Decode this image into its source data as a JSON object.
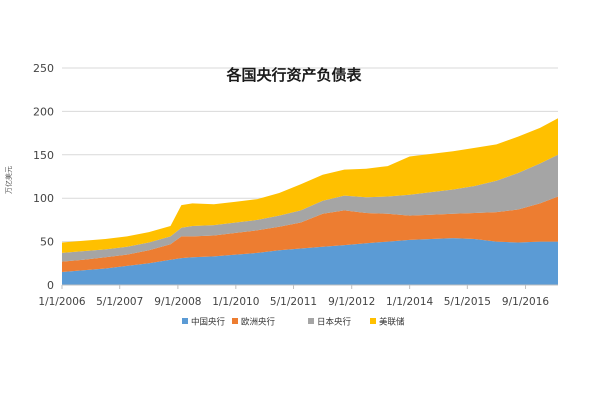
{
  "chart_data": {
    "type": "area",
    "stacked": true,
    "title": "各国央行资产负债表",
    "ylabel": "万亿美元",
    "ylim": [
      0,
      250
    ],
    "yticks": [
      0,
      50,
      100,
      150,
      200,
      250
    ],
    "xlim": [
      "2006-01-01",
      "2017-06-01"
    ],
    "xticks": [
      "1/1/2006",
      "5/1/2007",
      "9/1/2008",
      "1/1/2010",
      "5/1/2011",
      "9/1/2012",
      "1/1/2014",
      "5/1/2015",
      "9/1/2016"
    ],
    "grid": "horizontal",
    "legend_position": "bottom",
    "x": [
      "2006-01-01",
      "2006-07-01",
      "2007-01-01",
      "2007-07-01",
      "2008-01-01",
      "2008-07-01",
      "2008-10-01",
      "2009-01-01",
      "2009-07-01",
      "2010-01-01",
      "2010-07-01",
      "2011-01-01",
      "2011-07-01",
      "2012-01-01",
      "2012-07-01",
      "2013-01-01",
      "2013-07-01",
      "2014-01-01",
      "2014-07-01",
      "2015-01-01",
      "2015-07-01",
      "2016-01-01",
      "2016-07-01",
      "2017-01-01",
      "2017-06-01"
    ],
    "series": [
      {
        "name": "中国央行",
        "color": "#5b9bd5",
        "values": [
          15,
          17,
          19,
          22,
          25,
          29,
          31,
          32,
          33,
          35,
          37,
          40,
          42,
          44,
          46,
          48,
          50,
          52,
          53,
          54,
          53,
          50,
          49,
          50,
          50
        ]
      },
      {
        "name": "欧洲央行",
        "color": "#ed7d31",
        "values": [
          12,
          12,
          13,
          13,
          15,
          18,
          25,
          24,
          24,
          25,
          26,
          27,
          30,
          38,
          40,
          35,
          32,
          28,
          28,
          28,
          30,
          34,
          38,
          44,
          52
        ]
      },
      {
        "name": "日本央行",
        "color": "#a5a5a5",
        "values": [
          10,
          10,
          9,
          9,
          9,
          9,
          10,
          12,
          12,
          12,
          12,
          13,
          14,
          15,
          17,
          18,
          20,
          24,
          26,
          28,
          31,
          36,
          42,
          46,
          48
        ]
      },
      {
        "name": "美联储",
        "color": "#ffc000",
        "values": [
          12,
          12,
          12,
          12,
          12,
          12,
          26,
          26,
          24,
          24,
          24,
          26,
          30,
          30,
          30,
          33,
          35,
          44,
          44,
          44,
          44,
          42,
          42,
          41,
          42
        ]
      }
    ]
  }
}
